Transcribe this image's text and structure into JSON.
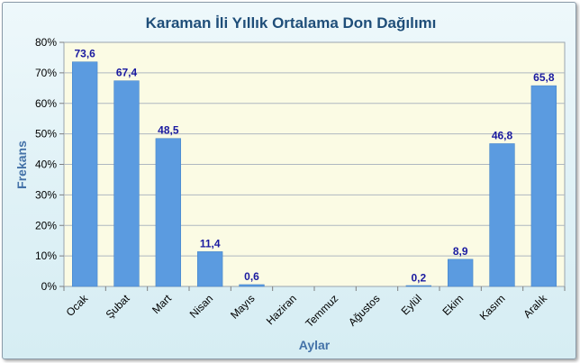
{
  "chart_data": {
    "type": "bar",
    "title": "Karaman İli Yıllık Ortalama Don Dağılımı",
    "xlabel": "Aylar",
    "ylabel": "Frekans",
    "ylim": [
      0,
      80
    ],
    "y_tick_step": 10,
    "y_tick_format": "percent",
    "grid": true,
    "legend": "none",
    "categories": [
      "Ocak",
      "Şubat",
      "Mart",
      "Nisan",
      "Mayıs",
      "Haziran",
      "Temmuz",
      "Ağustos",
      "Eylül",
      "Ekim",
      "Kasım",
      "Aralık"
    ],
    "values": [
      73.6,
      67.4,
      48.5,
      11.4,
      0.6,
      null,
      null,
      null,
      0.2,
      8.9,
      46.8,
      65.8
    ],
    "data_labels": [
      "73,6",
      "67,4",
      "48,5",
      "11,4",
      "0,6",
      "",
      "",
      "",
      "0,2",
      "8,9",
      "46,8",
      "65,8"
    ],
    "colors": {
      "bar": "#5b9be0",
      "bar_edge": "#3f7fc6",
      "plot_background": "#fbfbe4",
      "grid": "#aeb7c0",
      "title": "#1f4e79",
      "axis_title": "#4472a8",
      "data_label": "#1a1aa0"
    }
  }
}
